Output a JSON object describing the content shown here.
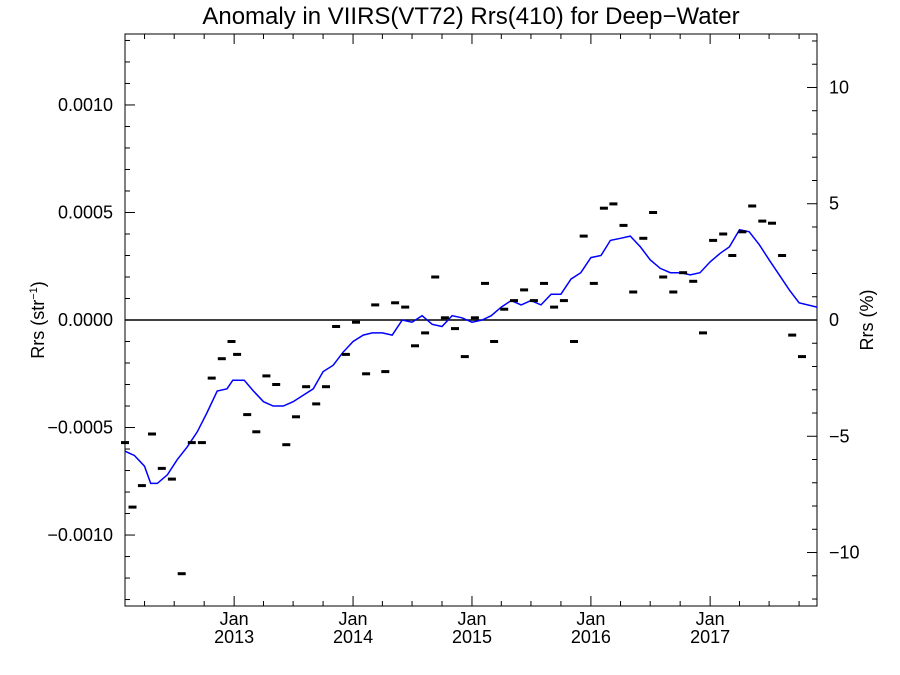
{
  "chart_data": {
    "type": "scatter",
    "title": "Anomaly in VIIRS(VT72) Rrs(410) for Deep−Water",
    "ylabel_left": "Rrs (str",
    "ylabel_left_sup": "−1",
    "ylabel_left_close": ")",
    "ylabel_right": "Rrs (%)",
    "x_range": [
      "2012-02-01",
      "2017-11-25"
    ],
    "ylim_left": [
      -0.00133,
      0.00133
    ],
    "ylim_right": [
      -12.3,
      12.3
    ],
    "y_ticks_left": [
      {
        "value": 0.001,
        "label": "0.0010"
      },
      {
        "value": 0.0005,
        "label": "0.0005"
      },
      {
        "value": 0.0,
        "label": "0.0000"
      },
      {
        "value": -0.0005,
        "label": "−0.0005"
      },
      {
        "value": -0.001,
        "label": "−0.0010"
      }
    ],
    "y_ticks_right": [
      {
        "value": 10,
        "label": "10"
      },
      {
        "value": 5,
        "label": "5"
      },
      {
        "value": 0,
        "label": "0"
      },
      {
        "value": -5,
        "label": "−5"
      },
      {
        "value": -10,
        "label": "−10"
      }
    ],
    "x_ticks": [
      {
        "date": "2013-01-01",
        "month": "Jan",
        "year": "2013"
      },
      {
        "date": "2014-01-01",
        "month": "Jan",
        "year": "2014"
      },
      {
        "date": "2015-01-01",
        "month": "Jan",
        "year": "2015"
      },
      {
        "date": "2016-01-01",
        "month": "Jan",
        "year": "2016"
      },
      {
        "date": "2017-01-01",
        "month": "Jan",
        "year": "2017"
      }
    ],
    "reference_line_y": 0,
    "colors": {
      "points": "#000000",
      "smoothed_line": "#0000ff",
      "axes": "#000000"
    },
    "points": [
      {
        "x": "2012-02-01",
        "y": -0.00057
      },
      {
        "x": "2012-02-24",
        "y": -0.00087
      },
      {
        "x": "2012-03-24",
        "y": -0.00077
      },
      {
        "x": "2012-04-24",
        "y": -0.00053
      },
      {
        "x": "2012-05-24",
        "y": -0.00069
      },
      {
        "x": "2012-06-24",
        "y": -0.00074
      },
      {
        "x": "2012-07-24",
        "y": -0.00118
      },
      {
        "x": "2012-08-24",
        "y": -0.00057
      },
      {
        "x": "2012-09-24",
        "y": -0.00057
      },
      {
        "x": "2012-10-24",
        "y": -0.00027
      },
      {
        "x": "2012-11-24",
        "y": -0.00018
      },
      {
        "x": "2012-12-24",
        "y": -0.0001
      },
      {
        "x": "2013-01-10",
        "y": -0.00016
      },
      {
        "x": "2013-02-10",
        "y": -0.00044
      },
      {
        "x": "2013-03-10",
        "y": -0.00052
      },
      {
        "x": "2013-04-10",
        "y": -0.00026
      },
      {
        "x": "2013-05-10",
        "y": -0.0003
      },
      {
        "x": "2013-06-10",
        "y": -0.00058
      },
      {
        "x": "2013-07-10",
        "y": -0.00045
      },
      {
        "x": "2013-08-10",
        "y": -0.00031
      },
      {
        "x": "2013-09-10",
        "y": -0.00039
      },
      {
        "x": "2013-10-10",
        "y": -0.00031
      },
      {
        "x": "2013-11-10",
        "y": -3e-05
      },
      {
        "x": "2013-12-10",
        "y": -0.00016
      },
      {
        "x": "2014-01-10",
        "y": -1e-05
      },
      {
        "x": "2014-02-10",
        "y": -0.00025
      },
      {
        "x": "2014-03-10",
        "y": 7e-05
      },
      {
        "x": "2014-04-10",
        "y": -0.00024
      },
      {
        "x": "2014-05-10",
        "y": 8e-05
      },
      {
        "x": "2014-06-10",
        "y": 6e-05
      },
      {
        "x": "2014-07-10",
        "y": -0.00012
      },
      {
        "x": "2014-08-10",
        "y": -6e-05
      },
      {
        "x": "2014-09-10",
        "y": 0.0002
      },
      {
        "x": "2014-10-10",
        "y": 1e-05
      },
      {
        "x": "2014-11-10",
        "y": -4e-05
      },
      {
        "x": "2014-12-10",
        "y": -0.00017
      },
      {
        "x": "2015-01-10",
        "y": 1e-05
      },
      {
        "x": "2015-02-10",
        "y": 0.00017
      },
      {
        "x": "2015-03-10",
        "y": -0.0001
      },
      {
        "x": "2015-04-10",
        "y": 5e-05
      },
      {
        "x": "2015-05-10",
        "y": 9e-05
      },
      {
        "x": "2015-06-10",
        "y": 0.00014
      },
      {
        "x": "2015-07-10",
        "y": 9e-05
      },
      {
        "x": "2015-08-10",
        "y": 0.00017
      },
      {
        "x": "2015-09-10",
        "y": 6e-05
      },
      {
        "x": "2015-10-10",
        "y": 9e-05
      },
      {
        "x": "2015-11-10",
        "y": -0.0001
      },
      {
        "x": "2015-12-10",
        "y": 0.00039
      },
      {
        "x": "2016-01-10",
        "y": 0.00017
      },
      {
        "x": "2016-02-10",
        "y": 0.00052
      },
      {
        "x": "2016-03-10",
        "y": 0.00054
      },
      {
        "x": "2016-04-10",
        "y": 0.00044
      },
      {
        "x": "2016-05-10",
        "y": 0.00013
      },
      {
        "x": "2016-06-10",
        "y": 0.00038
      },
      {
        "x": "2016-07-10",
        "y": 0.0005
      },
      {
        "x": "2016-08-10",
        "y": 0.0002
      },
      {
        "x": "2016-09-10",
        "y": 0.00013
      },
      {
        "x": "2016-10-10",
        "y": 0.00022
      },
      {
        "x": "2016-11-10",
        "y": 0.00018
      },
      {
        "x": "2016-12-10",
        "y": -6e-05
      },
      {
        "x": "2017-01-10",
        "y": 0.00037
      },
      {
        "x": "2017-02-10",
        "y": 0.0004
      },
      {
        "x": "2017-03-10",
        "y": 0.0003
      },
      {
        "x": "2017-04-10",
        "y": 0.00041
      },
      {
        "x": "2017-05-10",
        "y": 0.00053
      },
      {
        "x": "2017-06-10",
        "y": 0.00046
      },
      {
        "x": "2017-07-10",
        "y": 0.00045
      },
      {
        "x": "2017-08-10",
        "y": 0.0003
      },
      {
        "x": "2017-09-10",
        "y": -7e-05
      },
      {
        "x": "2017-10-10",
        "y": -0.00017
      }
    ],
    "smoothed": [
      {
        "x": "2012-02-01",
        "y": -0.00061
      },
      {
        "x": "2012-03-01",
        "y": -0.00063
      },
      {
        "x": "2012-04-01",
        "y": -0.00068
      },
      {
        "x": "2012-04-20",
        "y": -0.00076
      },
      {
        "x": "2012-05-10",
        "y": -0.00076
      },
      {
        "x": "2012-06-10",
        "y": -0.00072
      },
      {
        "x": "2012-07-10",
        "y": -0.00065
      },
      {
        "x": "2012-08-10",
        "y": -0.00059
      },
      {
        "x": "2012-09-10",
        "y": -0.00052
      },
      {
        "x": "2012-10-10",
        "y": -0.00043
      },
      {
        "x": "2012-11-10",
        "y": -0.00033
      },
      {
        "x": "2012-12-10",
        "y": -0.00032
      },
      {
        "x": "2012-12-28",
        "y": -0.00028
      },
      {
        "x": "2013-02-01",
        "y": -0.00028
      },
      {
        "x": "2013-03-01",
        "y": -0.00033
      },
      {
        "x": "2013-04-01",
        "y": -0.00038
      },
      {
        "x": "2013-05-01",
        "y": -0.0004
      },
      {
        "x": "2013-06-01",
        "y": -0.0004
      },
      {
        "x": "2013-07-01",
        "y": -0.00038
      },
      {
        "x": "2013-08-01",
        "y": -0.00035
      },
      {
        "x": "2013-09-01",
        "y": -0.00032
      },
      {
        "x": "2013-10-01",
        "y": -0.00024
      },
      {
        "x": "2013-11-01",
        "y": -0.00021
      },
      {
        "x": "2013-12-01",
        "y": -0.00015
      },
      {
        "x": "2014-01-01",
        "y": -0.0001
      },
      {
        "x": "2014-02-01",
        "y": -7e-05
      },
      {
        "x": "2014-03-01",
        "y": -6e-05
      },
      {
        "x": "2014-04-01",
        "y": -6e-05
      },
      {
        "x": "2014-05-01",
        "y": -7e-05
      },
      {
        "x": "2014-06-01",
        "y": 0.0
      },
      {
        "x": "2014-07-01",
        "y": -1e-05
      },
      {
        "x": "2014-08-01",
        "y": 2e-05
      },
      {
        "x": "2014-09-01",
        "y": -2e-05
      },
      {
        "x": "2014-10-01",
        "y": -3e-05
      },
      {
        "x": "2014-11-01",
        "y": 2e-05
      },
      {
        "x": "2014-12-01",
        "y": 1e-05
      },
      {
        "x": "2015-01-01",
        "y": -1e-05
      },
      {
        "x": "2015-02-01",
        "y": 0.0
      },
      {
        "x": "2015-03-01",
        "y": 2e-05
      },
      {
        "x": "2015-04-01",
        "y": 6e-05
      },
      {
        "x": "2015-05-01",
        "y": 9e-05
      },
      {
        "x": "2015-06-01",
        "y": 7e-05
      },
      {
        "x": "2015-07-01",
        "y": 9e-05
      },
      {
        "x": "2015-08-01",
        "y": 7e-05
      },
      {
        "x": "2015-09-01",
        "y": 0.00012
      },
      {
        "x": "2015-10-01",
        "y": 0.00012
      },
      {
        "x": "2015-11-01",
        "y": 0.00019
      },
      {
        "x": "2015-12-01",
        "y": 0.00022
      },
      {
        "x": "2016-01-01",
        "y": 0.00029
      },
      {
        "x": "2016-02-01",
        "y": 0.0003
      },
      {
        "x": "2016-03-01",
        "y": 0.00037
      },
      {
        "x": "2016-04-01",
        "y": 0.00038
      },
      {
        "x": "2016-05-01",
        "y": 0.00039
      },
      {
        "x": "2016-06-01",
        "y": 0.00034
      },
      {
        "x": "2016-07-01",
        "y": 0.00028
      },
      {
        "x": "2016-08-01",
        "y": 0.00024
      },
      {
        "x": "2016-09-01",
        "y": 0.00022
      },
      {
        "x": "2016-10-01",
        "y": 0.00022
      },
      {
        "x": "2016-11-01",
        "y": 0.00021
      },
      {
        "x": "2016-12-01",
        "y": 0.00022
      },
      {
        "x": "2017-01-01",
        "y": 0.00027
      },
      {
        "x": "2017-02-01",
        "y": 0.00031
      },
      {
        "x": "2017-03-01",
        "y": 0.00034
      },
      {
        "x": "2017-04-01",
        "y": 0.00042
      },
      {
        "x": "2017-05-01",
        "y": 0.00041
      },
      {
        "x": "2017-06-01",
        "y": 0.00035
      },
      {
        "x": "2017-07-01",
        "y": 0.00028
      },
      {
        "x": "2017-08-01",
        "y": 0.00021
      },
      {
        "x": "2017-09-01",
        "y": 0.00014
      },
      {
        "x": "2017-10-01",
        "y": 8e-05
      },
      {
        "x": "2017-11-25",
        "y": 6e-05
      }
    ]
  }
}
